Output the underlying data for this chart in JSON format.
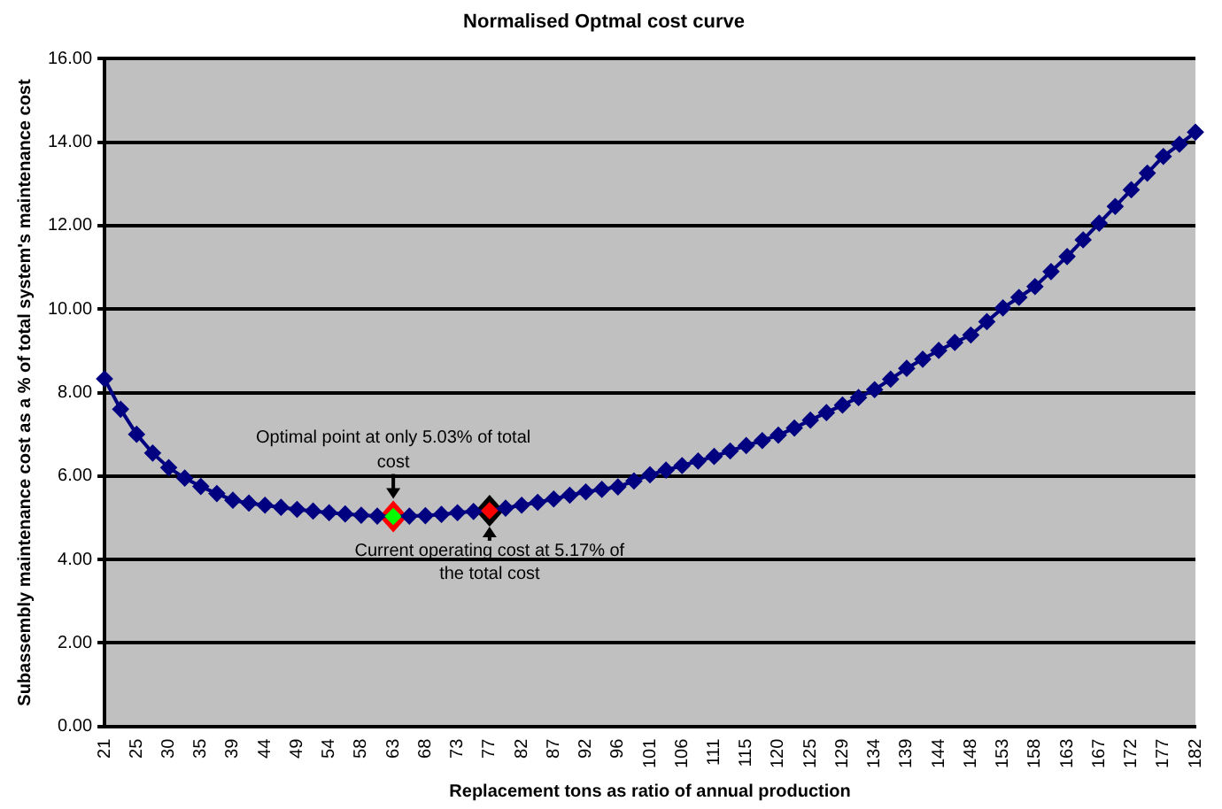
{
  "chart_data": {
    "type": "line",
    "title": "Normalised Optmal cost curve",
    "xlabel": "Replacement tons as ratio of annual production",
    "ylabel": "Subassembly maintenance cost as a % of total system's maintenance cost",
    "categories": [
      "21",
      null,
      "25",
      null,
      "30",
      null,
      "35",
      null,
      "39",
      null,
      "44",
      null,
      "49",
      null,
      "54",
      null,
      "58",
      null,
      "63",
      null,
      "68",
      null,
      "73",
      null,
      "77",
      null,
      "82",
      null,
      "87",
      null,
      "92",
      null,
      "96",
      null,
      "101",
      null,
      "106",
      null,
      "111",
      null,
      "115",
      null,
      "120",
      null,
      "125",
      null,
      "129",
      null,
      "134",
      null,
      "139",
      null,
      "144",
      null,
      "148",
      null,
      "153",
      null,
      "158",
      null,
      "163",
      null,
      "167",
      null,
      "172",
      null,
      "177",
      null,
      "182"
    ],
    "series": [
      {
        "color": "#000080",
        "colors": [
          "#000080",
          "#000080",
          "#000080",
          "#000080",
          "#000080",
          "#000080",
          "#000080",
          "#000080",
          "#000080",
          "#000080",
          "#000080",
          "#000080",
          "#000080",
          "#000080",
          "#000080",
          "#000080",
          "#000080",
          "#000080",
          "#00ff00",
          "#000080",
          "#000080",
          "#000080",
          "#000080",
          "#000080",
          "#ff0000",
          "#000080",
          "#000080",
          "#000080",
          "#000080",
          "#000080",
          "#000080",
          "#000080",
          "#000080",
          "#000080",
          "#000080",
          "#000080",
          "#000080",
          "#000080",
          "#000080",
          "#000080",
          "#000080",
          "#000080",
          "#000080",
          "#000080",
          "#000080",
          "#000080",
          "#000080",
          "#000080",
          "#000080",
          "#000080",
          "#000080",
          "#000080",
          "#000080",
          "#000080",
          "#000080",
          "#000080",
          "#000080",
          "#000080",
          "#000080",
          "#000080",
          "#000080",
          "#000080",
          "#000080",
          "#000080",
          "#000080",
          "#000080",
          "#000080",
          "#000080",
          "#000080"
        ],
        "values": [
          8.33,
          7.6,
          7.0,
          6.55,
          6.2,
          5.95,
          5.75,
          5.58,
          5.42,
          5.35,
          5.3,
          5.25,
          5.2,
          5.16,
          5.12,
          5.09,
          5.06,
          5.04,
          5.03,
          5.04,
          5.05,
          5.08,
          5.12,
          5.15,
          5.17,
          5.23,
          5.3,
          5.37,
          5.45,
          5.54,
          5.62,
          5.68,
          5.74,
          5.88,
          6.03,
          6.14,
          6.25,
          6.36,
          6.47,
          6.6,
          6.73,
          6.85,
          6.98,
          7.15,
          7.34,
          7.52,
          7.7,
          7.88,
          8.07,
          8.32,
          8.58,
          8.8,
          9.01,
          9.2,
          9.38,
          9.7,
          10.03,
          10.28,
          10.54,
          10.9,
          11.26,
          11.66,
          12.06,
          12.46,
          12.86,
          13.26,
          13.66,
          13.95,
          14.24
        ]
      }
    ],
    "ylim": [
      0,
      16
    ],
    "yticks": [
      {
        "value": 0,
        "label": "0.00"
      },
      {
        "value": 2,
        "label": "2.00"
      },
      {
        "value": 4,
        "label": "4.00"
      },
      {
        "value": 6,
        "label": "6.00"
      },
      {
        "value": 8,
        "label": "8.00"
      },
      {
        "value": 10,
        "label": "10.00"
      },
      {
        "value": 12,
        "label": "12.00"
      },
      {
        "value": 14,
        "label": "14.00"
      },
      {
        "value": 16,
        "label": "16.00"
      }
    ],
    "grid": "y",
    "marker": "diamond",
    "legend": false,
    "annotations": [
      {
        "text": "Optimal point at only 5.03% of total cost",
        "x": "63",
        "y": 5.03
      },
      {
        "text": "Current operating cost at 5.17% of the total cost",
        "x": "77",
        "y": 5.17
      }
    ]
  }
}
